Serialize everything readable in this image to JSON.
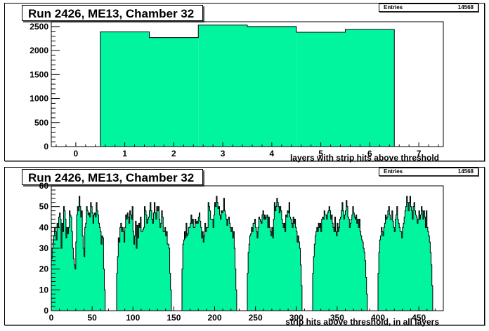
{
  "chart_data": [
    {
      "type": "bar",
      "title": "Run 2426, ME13, Chamber 32",
      "stats_label": "Entries",
      "stats_value": "14568",
      "xlabel": "layers with strip hits above threshold",
      "xlim": [
        -0.5,
        7.5
      ],
      "ylim": [
        0,
        2600
      ],
      "xticks": [
        "0",
        "1",
        "2",
        "3",
        "4",
        "5",
        "6",
        "7"
      ],
      "yticks": [
        "0",
        "500",
        "1000",
        "1500",
        "2000",
        "2500"
      ],
      "fill_color": "#00f59e",
      "bins": [
        {
          "x": 1,
          "value": 2390
        },
        {
          "x": 2,
          "value": 2270
        },
        {
          "x": 3,
          "value": 2530
        },
        {
          "x": 4,
          "value": 2500
        },
        {
          "x": 5,
          "value": 2380
        },
        {
          "x": 6,
          "value": 2440
        }
      ]
    },
    {
      "type": "bar",
      "title": "Run 2426, ME13, Chamber 32",
      "stats_label": "Entries",
      "stats_value": "14568",
      "xlabel": "strip hits above threshold, in all layers",
      "xlim": [
        0,
        480
      ],
      "ylim": [
        0,
        60
      ],
      "xticks": [
        "0",
        "50",
        "100",
        "150",
        "200",
        "250",
        "300",
        "350",
        "400",
        "450"
      ],
      "yticks": [
        "0",
        "10",
        "20",
        "30",
        "40",
        "50",
        "60"
      ],
      "fill_color": "#00f59e",
      "groups": [
        {
          "start": 0,
          "values": [
            25,
            30,
            33,
            36,
            40,
            38,
            34,
            42,
            40,
            45,
            47,
            44,
            30,
            42,
            38,
            50,
            48,
            44,
            35,
            40,
            37,
            40,
            48,
            46,
            45,
            38,
            30,
            25,
            22,
            20,
            33,
            46,
            50,
            48,
            55,
            50,
            45,
            48,
            36,
            30,
            26,
            40,
            42,
            50,
            48,
            46,
            47,
            45,
            52,
            50,
            47,
            42,
            46,
            47,
            45,
            52,
            48,
            46,
            42,
            40,
            38,
            32,
            36,
            35,
            20,
            10
          ]
        },
        {
          "start": 80,
          "values": [
            18,
            26,
            35,
            33,
            40,
            42,
            38,
            40,
            38,
            33,
            40,
            46,
            44,
            47,
            45,
            42,
            48,
            46,
            44,
            50,
            38,
            32,
            36,
            43,
            30,
            41,
            35,
            42,
            40,
            45,
            38,
            38,
            39,
            40,
            50,
            48,
            46,
            42,
            44,
            45,
            48,
            52,
            48,
            44,
            42,
            47,
            52,
            47,
            44,
            50,
            48,
            50,
            44,
            40,
            42,
            48,
            45,
            38,
            38,
            40,
            36,
            38,
            32,
            32,
            30,
            18,
            10
          ]
        },
        {
          "start": 160,
          "values": [
            20,
            32,
            34,
            38,
            35,
            42,
            36,
            37,
            40,
            40,
            42,
            46,
            42,
            44,
            40,
            40,
            44,
            42,
            43,
            42,
            45,
            47,
            43,
            40,
            35,
            38,
            33,
            36,
            42,
            38,
            40,
            40,
            52,
            50,
            48,
            44,
            44,
            44,
            40,
            46,
            52,
            50,
            55,
            52,
            49,
            50,
            46,
            44,
            48,
            47,
            48,
            54,
            48,
            46,
            44,
            41,
            44,
            45,
            42,
            40,
            38,
            40,
            35,
            38,
            30,
            20,
            10
          ]
        },
        {
          "start": 240,
          "values": [
            18,
            28,
            32,
            36,
            37,
            40,
            38,
            42,
            42,
            44,
            40,
            38,
            35,
            40,
            45,
            44,
            43,
            42,
            46,
            48,
            44,
            46,
            44,
            45,
            46,
            40,
            45,
            40,
            38,
            36,
            40,
            35,
            44,
            52,
            48,
            50,
            54,
            52,
            50,
            47,
            50,
            48,
            44,
            42,
            40,
            42,
            38,
            46,
            45,
            48,
            47,
            52,
            45,
            44,
            42,
            40,
            45,
            42,
            44,
            40,
            38,
            33,
            36,
            33,
            30,
            22,
            12
          ]
        },
        {
          "start": 320,
          "values": [
            18,
            26,
            32,
            36,
            38,
            40,
            38,
            42,
            40,
            42,
            38,
            44,
            45,
            44,
            48,
            46,
            46,
            44,
            47,
            48,
            50,
            48,
            44,
            46,
            42,
            40,
            38,
            45,
            38,
            36,
            42,
            38,
            40,
            44,
            45,
            48,
            52,
            48,
            44,
            46,
            48,
            53,
            50,
            45,
            44,
            40,
            42,
            44,
            46,
            50,
            47,
            45,
            44,
            46,
            42,
            44,
            40,
            44,
            38,
            36,
            34,
            33,
            30,
            28,
            24,
            16,
            8
          ]
        },
        {
          "start": 400,
          "values": [
            18,
            28,
            34,
            36,
            40,
            38,
            36,
            40,
            42,
            46,
            44,
            45,
            48,
            50,
            46,
            44,
            44,
            48,
            43,
            40,
            38,
            44,
            46,
            50,
            44,
            42,
            40,
            38,
            38,
            35,
            40,
            42,
            45,
            48,
            50,
            55,
            52,
            48,
            52,
            55,
            50,
            48,
            44,
            50,
            52,
            48,
            46,
            45,
            42,
            44,
            48,
            44,
            46,
            50,
            48,
            44,
            48,
            45,
            40,
            48,
            40,
            38,
            36,
            33,
            28,
            22,
            12
          ]
        }
      ]
    }
  ]
}
